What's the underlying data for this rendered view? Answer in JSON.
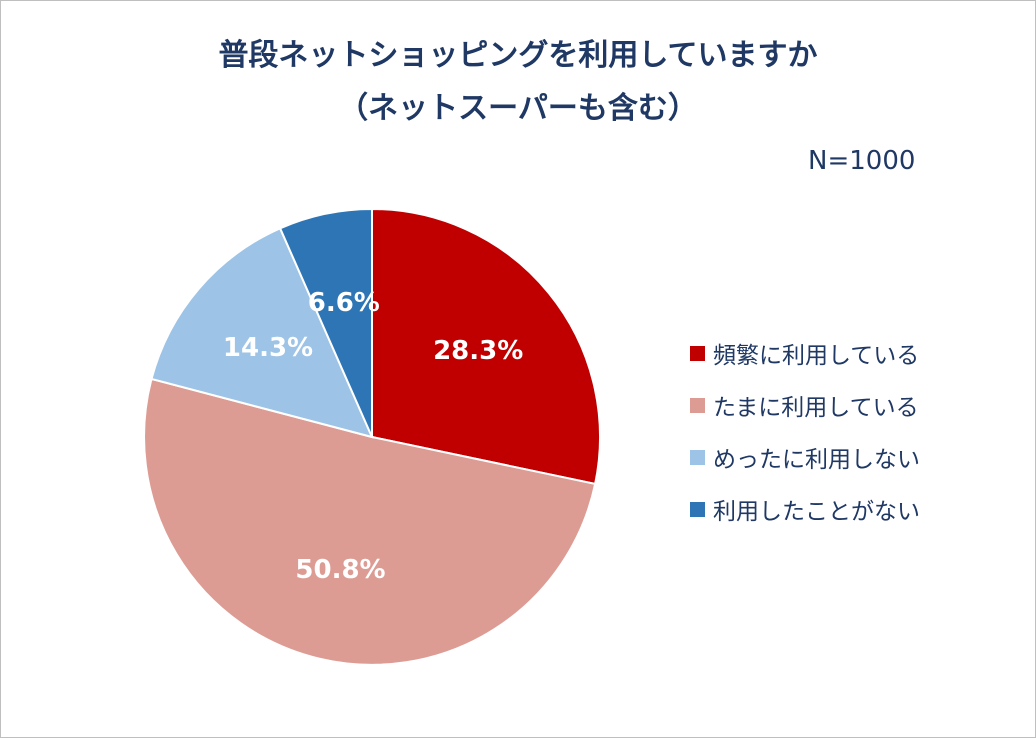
{
  "chart_data": {
    "type": "pie",
    "title": "普段ネットショッピングを利用していますか",
    "subtitle": "（ネットスーパーも含む）",
    "annotation": "N=1000",
    "legend_position": "right",
    "slices": [
      {
        "label": "頻繁に利用している",
        "value": 28.3,
        "display": "28.3%",
        "color": "#c00000"
      },
      {
        "label": "たまに利用している",
        "value": 50.8,
        "display": "50.8%",
        "color": "#dc9c94"
      },
      {
        "label": "めったに利用しない",
        "value": 14.3,
        "display": "14.3%",
        "color": "#9dc3e6"
      },
      {
        "label": "利用したことがない",
        "value": 6.6,
        "display": "6.6%",
        "color": "#2e75b6"
      }
    ]
  }
}
